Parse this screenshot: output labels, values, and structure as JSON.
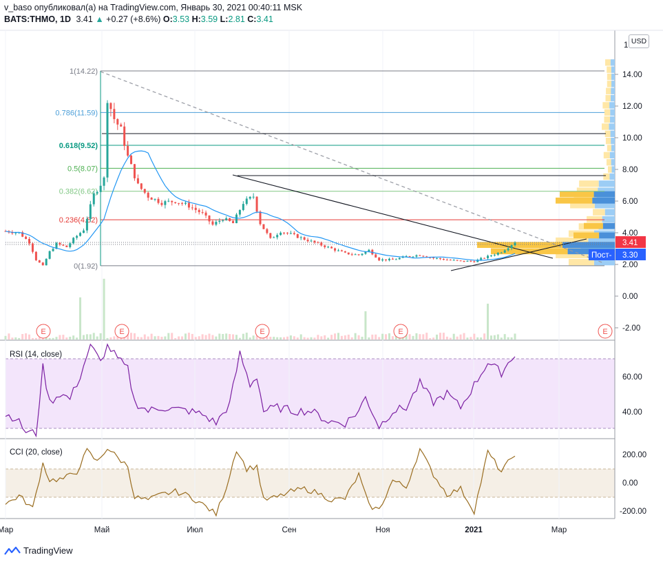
{
  "header": {
    "author": "v_baso",
    "published_text": "опубликовал(а) на TradingView.com, Январь 30, 2021 00:40:11 MSK",
    "symbol": "BATS:THMO, 1D",
    "last": "3.41",
    "change": "+0.27 (+8.6%)",
    "o_label": "O:",
    "o": "3.53",
    "h_label": "H:",
    "h": "3.59",
    "l_label": "L:",
    "l": "2.81",
    "c_label": "C:",
    "c": "3.41"
  },
  "currency_button": "USD",
  "price_axis": {
    "ticks": [
      "14.00",
      "12.00",
      "10.00",
      "8.00",
      "6.00",
      "4.00",
      "2.00",
      "0.00",
      "-2.00"
    ],
    "top_partial": "1"
  },
  "price_tags": {
    "last": "3.41",
    "post": "Пост-",
    "post_value": "3.30"
  },
  "time_axis": [
    "Мар",
    "Май",
    "Июл",
    "Сен",
    "Ноя",
    "2021",
    "Мар"
  ],
  "fib_levels": [
    {
      "label": "1(14.22)",
      "value": 14.22,
      "color": "#787b86"
    },
    {
      "label": "0.786(11.59)",
      "value": 11.59,
      "color": "#4a9ed8"
    },
    {
      "label": "0.618(9.52)",
      "value": 9.52,
      "color": "#089981"
    },
    {
      "label": "0.5(8.07)",
      "value": 8.07,
      "color": "#4caf50"
    },
    {
      "label": "0.382(6.62)",
      "value": 6.62,
      "color": "#81c784"
    },
    {
      "label": "0.236(4.82)",
      "value": 4.82,
      "color": "#e53935"
    },
    {
      "label": "0(1.92)",
      "value": 1.92,
      "color": "#787b86"
    }
  ],
  "earnings_marker": "E",
  "rsi": {
    "title": "RSI (14, close)",
    "ticks": [
      "60.00",
      "40.00"
    ]
  },
  "cci": {
    "title": "CCI (20, close)",
    "ticks": [
      "200.00",
      "0.00",
      "-200.00"
    ]
  },
  "footer": {
    "brand": "TradingView"
  },
  "chart_data": {
    "type": "candlestick",
    "price_range": [
      -2.8,
      16.2
    ],
    "close_series": [
      {
        "t": 0,
        "v": 4.1
      },
      {
        "t": 4,
        "v": 4.0
      },
      {
        "t": 7,
        "v": 3.4
      },
      {
        "t": 9,
        "v": 2.3
      },
      {
        "t": 11,
        "v": 1.9
      },
      {
        "t": 13,
        "v": 2.8
      },
      {
        "t": 15,
        "v": 3.3
      },
      {
        "t": 18,
        "v": 3.1
      },
      {
        "t": 20,
        "v": 3.6
      },
      {
        "t": 23,
        "v": 4.2
      },
      {
        "t": 26,
        "v": 6.4
      },
      {
        "t": 29,
        "v": 7.4
      },
      {
        "t": 30,
        "v": 12.5
      },
      {
        "t": 32,
        "v": 11.2
      },
      {
        "t": 34,
        "v": 10.5
      },
      {
        "t": 36,
        "v": 8.8
      },
      {
        "t": 39,
        "v": 7.0
      },
      {
        "t": 42,
        "v": 6.3
      },
      {
        "t": 46,
        "v": 5.9
      },
      {
        "t": 50,
        "v": 6.0
      },
      {
        "t": 54,
        "v": 5.7
      },
      {
        "t": 58,
        "v": 5.2
      },
      {
        "t": 61,
        "v": 4.5
      },
      {
        "t": 64,
        "v": 4.9
      },
      {
        "t": 67,
        "v": 4.6
      },
      {
        "t": 70,
        "v": 5.9
      },
      {
        "t": 73,
        "v": 6.3
      },
      {
        "t": 75,
        "v": 4.6
      },
      {
        "t": 78,
        "v": 3.6
      },
      {
        "t": 81,
        "v": 4.1
      },
      {
        "t": 84,
        "v": 3.9
      },
      {
        "t": 88,
        "v": 3.6
      },
      {
        "t": 92,
        "v": 3.3
      },
      {
        "t": 96,
        "v": 3.0
      },
      {
        "t": 100,
        "v": 2.7
      },
      {
        "t": 104,
        "v": 2.6
      },
      {
        "t": 107,
        "v": 2.9
      },
      {
        "t": 110,
        "v": 2.3
      },
      {
        "t": 114,
        "v": 2.3
      },
      {
        "t": 118,
        "v": 2.5
      },
      {
        "t": 122,
        "v": 2.6
      },
      {
        "t": 126,
        "v": 2.4
      },
      {
        "t": 130,
        "v": 2.3
      },
      {
        "t": 134,
        "v": 2.2
      },
      {
        "t": 138,
        "v": 2.2
      },
      {
        "t": 142,
        "v": 2.5
      },
      {
        "t": 146,
        "v": 2.8
      },
      {
        "t": 150,
        "v": 3.41
      }
    ],
    "rsi_range": [
      27,
      83
    ],
    "rsi_series": [
      {
        "t": 0,
        "v": 38
      },
      {
        "t": 3,
        "v": 36
      },
      {
        "t": 6,
        "v": 28
      },
      {
        "t": 9,
        "v": 27
      },
      {
        "t": 11,
        "v": 65
      },
      {
        "t": 13,
        "v": 45
      },
      {
        "t": 16,
        "v": 50
      },
      {
        "t": 19,
        "v": 47
      },
      {
        "t": 22,
        "v": 60
      },
      {
        "t": 25,
        "v": 78
      },
      {
        "t": 28,
        "v": 68
      },
      {
        "t": 30,
        "v": 78
      },
      {
        "t": 33,
        "v": 70
      },
      {
        "t": 36,
        "v": 64
      },
      {
        "t": 38,
        "v": 45
      },
      {
        "t": 42,
        "v": 40
      },
      {
        "t": 46,
        "v": 42
      },
      {
        "t": 50,
        "v": 41
      },
      {
        "t": 54,
        "v": 40
      },
      {
        "t": 58,
        "v": 38
      },
      {
        "t": 62,
        "v": 33
      },
      {
        "t": 66,
        "v": 44
      },
      {
        "t": 69,
        "v": 73
      },
      {
        "t": 72,
        "v": 55
      },
      {
        "t": 74,
        "v": 60
      },
      {
        "t": 76,
        "v": 40
      },
      {
        "t": 80,
        "v": 42
      },
      {
        "t": 85,
        "v": 40
      },
      {
        "t": 90,
        "v": 40
      },
      {
        "t": 95,
        "v": 34
      },
      {
        "t": 100,
        "v": 33
      },
      {
        "t": 104,
        "v": 40
      },
      {
        "t": 106,
        "v": 48
      },
      {
        "t": 110,
        "v": 31
      },
      {
        "t": 114,
        "v": 40
      },
      {
        "t": 118,
        "v": 42
      },
      {
        "t": 122,
        "v": 56
      },
      {
        "t": 126,
        "v": 45
      },
      {
        "t": 130,
        "v": 50
      },
      {
        "t": 134,
        "v": 42
      },
      {
        "t": 138,
        "v": 55
      },
      {
        "t": 142,
        "v": 68
      },
      {
        "t": 146,
        "v": 62
      },
      {
        "t": 150,
        "v": 73
      }
    ],
    "cci_range": [
      -260,
      310
    ],
    "cci_series": [
      {
        "t": 0,
        "v": -150
      },
      {
        "t": 4,
        "v": -90
      },
      {
        "t": 8,
        "v": -180
      },
      {
        "t": 11,
        "v": 140
      },
      {
        "t": 13,
        "v": 20
      },
      {
        "t": 17,
        "v": 30
      },
      {
        "t": 21,
        "v": 80
      },
      {
        "t": 24,
        "v": 230
      },
      {
        "t": 27,
        "v": 150
      },
      {
        "t": 30,
        "v": 250
      },
      {
        "t": 33,
        "v": 180
      },
      {
        "t": 36,
        "v": 120
      },
      {
        "t": 38,
        "v": -100
      },
      {
        "t": 42,
        "v": -120
      },
      {
        "t": 46,
        "v": -80
      },
      {
        "t": 50,
        "v": -60
      },
      {
        "t": 54,
        "v": -90
      },
      {
        "t": 58,
        "v": -150
      },
      {
        "t": 62,
        "v": -220
      },
      {
        "t": 65,
        "v": -30
      },
      {
        "t": 68,
        "v": 240
      },
      {
        "t": 71,
        "v": 100
      },
      {
        "t": 74,
        "v": 120
      },
      {
        "t": 76,
        "v": -120
      },
      {
        "t": 80,
        "v": -100
      },
      {
        "t": 84,
        "v": -60
      },
      {
        "t": 88,
        "v": -40
      },
      {
        "t": 92,
        "v": -70
      },
      {
        "t": 96,
        "v": -120
      },
      {
        "t": 100,
        "v": -110
      },
      {
        "t": 104,
        "v": 60
      },
      {
        "t": 107,
        "v": -160
      },
      {
        "t": 110,
        "v": -190
      },
      {
        "t": 114,
        "v": 20
      },
      {
        "t": 118,
        "v": -30
      },
      {
        "t": 122,
        "v": 240
      },
      {
        "t": 126,
        "v": 60
      },
      {
        "t": 130,
        "v": -80
      },
      {
        "t": 134,
        "v": -40
      },
      {
        "t": 138,
        "v": -200
      },
      {
        "t": 142,
        "v": 220
      },
      {
        "t": 146,
        "v": 80
      },
      {
        "t": 150,
        "v": 210
      }
    ]
  }
}
